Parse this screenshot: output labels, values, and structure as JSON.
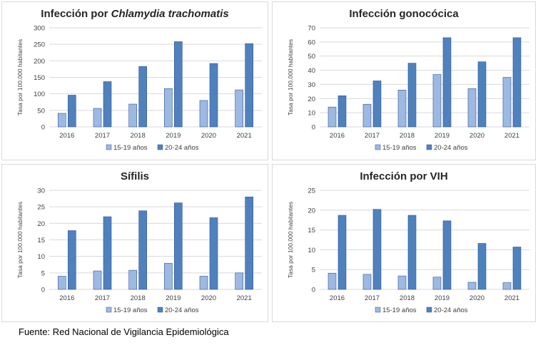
{
  "colors": {
    "series_light": "#9DB9E1",
    "series_dark": "#4F81BD",
    "grid": "#d9d9d9",
    "bar_outline": "#2F5597"
  },
  "chart_data": [
    {
      "type": "bar",
      "title_prefix": "Infección por ",
      "title_italic": "Chlamydia trachomatis",
      "ylabel": "Tasa por 100.000 habitantes",
      "categories": [
        "2016",
        "2017",
        "2018",
        "2019",
        "2020",
        "2021"
      ],
      "yticks": [
        "0",
        "50",
        "100",
        "150",
        "200",
        "250",
        "300"
      ],
      "ylim": [
        0,
        300
      ],
      "series": [
        {
          "name": "15-19 años",
          "values": [
            41,
            56,
            69,
            116,
            80,
            112
          ]
        },
        {
          "name": "20-24 años",
          "values": [
            96,
            137,
            183,
            258,
            192,
            252
          ]
        }
      ],
      "legend": "bottom"
    },
    {
      "type": "bar",
      "title_prefix": "Infección gonocócica",
      "title_italic": "",
      "ylabel": "Tasa por 100.000 habitantes",
      "categories": [
        "2016",
        "2017",
        "2018",
        "2019",
        "2020",
        "2021"
      ],
      "yticks": [
        "0",
        "10",
        "20",
        "30",
        "40",
        "50",
        "60",
        "70"
      ],
      "ylim": [
        0,
        70
      ],
      "series": [
        {
          "name": "15-19 años",
          "values": [
            14,
            16,
            26,
            37,
            27,
            35
          ]
        },
        {
          "name": "20-24 años",
          "values": [
            22,
            32.5,
            45,
            63,
            46,
            63
          ]
        }
      ],
      "legend": "bottom"
    },
    {
      "type": "bar",
      "title_prefix": "Sífilis",
      "title_italic": "",
      "ylabel": "Tasa por 100.000 habitantes",
      "categories": [
        "2016",
        "2017",
        "2018",
        "2019",
        "2020",
        "2021"
      ],
      "yticks": [
        "0",
        "5",
        "10",
        "15",
        "20",
        "25",
        "30"
      ],
      "ylim": [
        0,
        30
      ],
      "series": [
        {
          "name": "15-19 años",
          "values": [
            4,
            5.6,
            5.8,
            7.9,
            4,
            5
          ]
        },
        {
          "name": "20-24 años",
          "values": [
            17.8,
            22,
            23.8,
            26.2,
            21.7,
            28
          ]
        }
      ],
      "legend": "bottom"
    },
    {
      "type": "bar",
      "title_prefix": "Infección por VIH",
      "title_italic": "",
      "ylabel": "Tasa por 100.000 habitantes",
      "categories": [
        "2016",
        "2017",
        "2018",
        "2019",
        "2020",
        "2021"
      ],
      "yticks": [
        "0",
        "5",
        "10",
        "15",
        "20",
        "25"
      ],
      "ylim": [
        0,
        25
      ],
      "series": [
        {
          "name": "15-19 años",
          "values": [
            4.1,
            3.8,
            3.4,
            3.1,
            1.8,
            1.7
          ]
        },
        {
          "name": "20-24 años",
          "values": [
            18.7,
            20.2,
            18.7,
            17.3,
            11.6,
            10.7
          ]
        }
      ],
      "legend": "bottom"
    }
  ],
  "source": "Fuente: Red Nacional de Vigilancia Epidemiológica"
}
